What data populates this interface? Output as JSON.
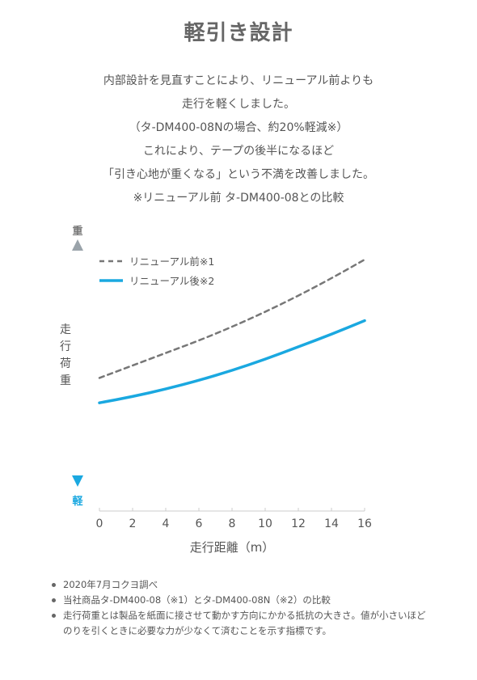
{
  "header": {
    "title": "軽引き設計"
  },
  "description": [
    "内部設計を見直すことにより、リニューアル前よりも",
    "走行を軽くしました。",
    "（タ-DM400-08Nの場合、約20%軽減※）",
    "これにより、テープの後半になるほど",
    "「引き心地が重くなる」という不満を改善しました。",
    "※リニューアル前 タ-DM400-08との比較"
  ],
  "chart_data": {
    "type": "line",
    "title": "",
    "xlabel": "走行距離（m）",
    "ylabel": "走行荷重",
    "y_axis_top_label": "重",
    "y_axis_bottom_label": "軽",
    "x_ticks": [
      0,
      2,
      4,
      6,
      8,
      10,
      12,
      14,
      16
    ],
    "xlim": [
      0,
      16
    ],
    "ylim": [
      0,
      100
    ],
    "grid": false,
    "legend_position": "top-left",
    "series": [
      {
        "name": "リニューアル前※1",
        "style": "dashed",
        "color": "#777777",
        "x": [
          0,
          2,
          4,
          6,
          8,
          10,
          12,
          14,
          16
        ],
        "y": [
          45,
          50,
          55,
          60,
          65.5,
          71.5,
          78,
          85,
          92.5
        ]
      },
      {
        "name": "リニューアル後※2",
        "style": "solid",
        "color": "#1aa8e0",
        "x": [
          0,
          2,
          4,
          6,
          8,
          10,
          12,
          14,
          16
        ],
        "y": [
          35,
          37.5,
          40.5,
          44,
          48,
          52.5,
          57.5,
          62.5,
          68
        ]
      }
    ]
  },
  "notes": [
    "2020年7月コクヨ調べ",
    "当社商品タ-DM400-08（※1）とタ-DM400-08N（※2）の比較",
    "走行荷重とは製品を紙面に接させて動かす方向にかかる抵抗の大きさ。値が小さいほどのりを引くときに必要な力が少なくて済むことを示す指標です。"
  ],
  "colors": {
    "title": "#666666",
    "text": "#555555",
    "axis": "#9aa3aa",
    "after_line": "#1aa8e0",
    "before_line": "#777777"
  }
}
